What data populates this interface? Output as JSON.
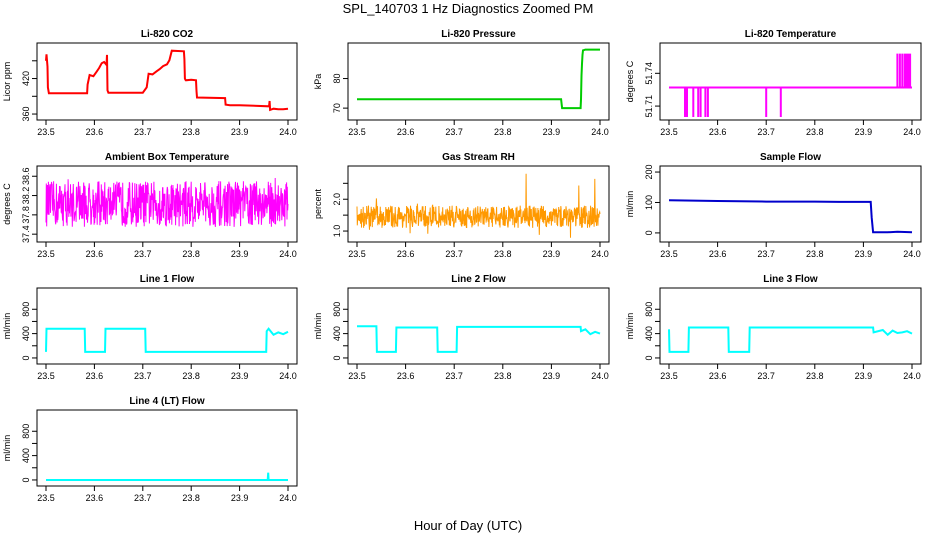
{
  "figure": {
    "title": "SPL_140703  1 Hz Diagnostics Zoomed PM",
    "x_caption": "Hour of Day (UTC)"
  },
  "chart_data": [
    {
      "id": "co2",
      "type": "line",
      "title": "Li-820 CO2",
      "ylabel": "Licor ppm",
      "color": "#ff0000",
      "xlim": [
        23.5,
        24.0
      ],
      "ylim": [
        355,
        475
      ],
      "xticks": [
        23.5,
        23.6,
        23.7,
        23.8,
        23.9,
        24.0
      ],
      "xtick_labels": [
        "23.5",
        "23.6",
        "23.7",
        "23.8",
        "23.9",
        "24.0"
      ],
      "yticks": [
        360,
        390,
        420,
        450
      ],
      "ytick_labels": [
        "360",
        "",
        "420",
        ""
      ],
      "series": [
        {
          "x": [
            23.5,
            23.501,
            23.503,
            23.504,
            23.506,
            23.585,
            23.586,
            23.59,
            23.598,
            23.605,
            23.61,
            23.615,
            23.62,
            23.625,
            23.626,
            23.627,
            23.628,
            23.629,
            23.7,
            23.708,
            23.712,
            23.72,
            23.728,
            23.735,
            23.742,
            23.75,
            23.755,
            23.76,
            23.785,
            23.786,
            23.787,
            23.788,
            23.789,
            23.8,
            23.81,
            23.811,
            23.812,
            23.87,
            23.871,
            23.88,
            23.9,
            23.96,
            23.961,
            23.962,
            23.963,
            23.97,
            23.98,
            23.99,
            24.0
          ],
          "y": [
            450,
            461,
            440,
            405,
            395,
            395,
            410,
            426,
            424,
            432,
            438,
            446,
            448,
            443,
            460,
            400,
            398,
            396,
            396,
            405,
            428,
            427,
            432,
            436,
            441,
            444,
            451,
            467,
            466,
            453,
            420,
            418,
            417,
            418,
            417,
            399,
            388,
            387,
            376,
            375,
            375,
            373,
            374,
            382,
            367,
            369,
            368,
            368,
            369
          ]
        }
      ]
    },
    {
      "id": "pressure",
      "type": "line",
      "title": "Li-820 Pressure",
      "ylabel": "kPa",
      "color": "#00cc00",
      "xlim": [
        23.5,
        24.0
      ],
      "ylim": [
        67,
        91
      ],
      "xticks": [
        23.5,
        23.6,
        23.7,
        23.8,
        23.9,
        24.0
      ],
      "xtick_labels": [
        "23.5",
        "23.6",
        "23.7",
        "23.8",
        "23.9",
        "24.0"
      ],
      "yticks": [
        70,
        80
      ],
      "ytick_labels": [
        "70",
        "80"
      ],
      "series": [
        {
          "x": [
            23.5,
            23.92,
            23.921,
            23.922,
            23.96,
            23.961,
            23.962,
            23.963,
            23.964,
            23.965,
            23.97,
            24.0
          ],
          "y": [
            73,
            73,
            71.5,
            70,
            70,
            73,
            81,
            85,
            88,
            89.5,
            89.8,
            89.8
          ]
        }
      ]
    },
    {
      "id": "licor-temp",
      "type": "line",
      "title": "Li-820 Temperature",
      "ylabel": "degrees C",
      "color": "#ff00ff",
      "xlim": [
        23.5,
        24.0
      ],
      "ylim": [
        51.7,
        51.765
      ],
      "xticks": [
        23.5,
        23.6,
        23.7,
        23.8,
        23.9,
        24.0
      ],
      "xtick_labels": [
        "23.5",
        "23.6",
        "23.7",
        "23.8",
        "23.9",
        "24.0"
      ],
      "yticks": [
        51.71,
        51.74
      ],
      "ytick_labels": [
        "51.71",
        "51.74"
      ],
      "series": [
        {
          "x": [
            23.5,
            23.533,
            23.533,
            23.533,
            23.535,
            23.535,
            23.535,
            23.537,
            23.537,
            23.537,
            23.55,
            23.55,
            23.55,
            23.56,
            23.56,
            23.56,
            23.565,
            23.565,
            23.565,
            23.575,
            23.575,
            23.575,
            23.58,
            23.58,
            23.58,
            23.7,
            23.7,
            23.7,
            23.73,
            23.73,
            23.73,
            23.97,
            23.97,
            23.97,
            23.975,
            23.975,
            23.975,
            23.98,
            23.98,
            23.98,
            23.985,
            23.985,
            23.985,
            23.988,
            23.988,
            23.988,
            23.992,
            23.992,
            23.992,
            23.996,
            23.996,
            23.996,
            24.0
          ],
          "y": [
            51.727,
            51.727,
            51.7,
            51.727,
            51.727,
            51.7,
            51.727,
            51.727,
            51.7,
            51.727,
            51.727,
            51.7,
            51.727,
            51.727,
            51.7,
            51.727,
            51.727,
            51.7,
            51.727,
            51.727,
            51.7,
            51.727,
            51.727,
            51.7,
            51.727,
            51.727,
            51.7,
            51.727,
            51.727,
            51.7,
            51.727,
            51.727,
            51.758,
            51.727,
            51.727,
            51.758,
            51.727,
            51.727,
            51.758,
            51.727,
            51.727,
            51.758,
            51.727,
            51.727,
            51.758,
            51.727,
            51.727,
            51.758,
            51.727,
            51.727,
            51.758,
            51.727,
            51.727
          ]
        }
      ]
    },
    {
      "id": "box-temp",
      "type": "line",
      "title": "Ambient Box Temperature",
      "ylabel": "degrees C",
      "color": "#ff00ff",
      "xlim": [
        23.5,
        24.0
      ],
      "ylim": [
        37.3,
        38.75
      ],
      "xticks": [
        23.5,
        23.6,
        23.7,
        23.8,
        23.9,
        24.0
      ],
      "xtick_labels": [
        "23.5",
        "23.6",
        "23.7",
        "23.8",
        "23.9",
        "24.0"
      ],
      "yticks": [
        37.4,
        37.8,
        38.2,
        38.6
      ],
      "ytick_labels": [
        "37.4",
        "37.8",
        "38.2",
        "38.6"
      ],
      "noise": {
        "x_start": 23.5,
        "x_end": 24.0,
        "low": 37.55,
        "high": 38.5,
        "n": 700
      }
    },
    {
      "id": "gas-rh",
      "type": "line",
      "title": "Gas Stream RH",
      "ylabel": "percent",
      "color": "#ff9900",
      "xlim": [
        23.5,
        24.0
      ],
      "ylim": [
        0.75,
        2.95
      ],
      "xticks": [
        23.5,
        23.6,
        23.7,
        23.8,
        23.9,
        24.0
      ],
      "xtick_labels": [
        "23.5",
        "23.6",
        "23.7",
        "23.8",
        "23.9",
        "24.0"
      ],
      "yticks": [
        1.0,
        1.5,
        2.0,
        2.5
      ],
      "ytick_labels": [
        "1.0",
        "",
        "2.0",
        ""
      ],
      "noise": {
        "x_start": 23.5,
        "x_end": 24.0,
        "low": 1.1,
        "high": 1.8,
        "n": 700
      }
    },
    {
      "id": "sample-flow",
      "type": "line",
      "title": "Sample Flow",
      "ylabel": "ml/min",
      "color": "#0000cc",
      "xlim": [
        23.5,
        24.0
      ],
      "ylim": [
        -20,
        210
      ],
      "xticks": [
        23.5,
        23.6,
        23.7,
        23.8,
        23.9,
        24.0
      ],
      "xtick_labels": [
        "23.5",
        "23.6",
        "23.7",
        "23.8",
        "23.9",
        "24.0"
      ],
      "yticks": [
        0,
        100,
        200
      ],
      "ytick_labels": [
        "0",
        "100",
        "200"
      ],
      "series": [
        {
          "x": [
            23.5,
            23.6,
            23.7,
            23.8,
            23.85,
            23.9,
            23.915,
            23.917,
            23.92,
            23.95,
            23.97,
            24.0
          ],
          "y": [
            107,
            105,
            103,
            103,
            102,
            102,
            102,
            50,
            2,
            2,
            4,
            2
          ]
        }
      ]
    },
    {
      "id": "line1",
      "type": "line",
      "title": "Line 1 Flow",
      "ylabel": "ml/min",
      "color": "#00ffff",
      "xlim": [
        23.5,
        24.0
      ],
      "ylim": [
        -50,
        1100
      ],
      "xticks": [
        23.5,
        23.6,
        23.7,
        23.8,
        23.9,
        24.0
      ],
      "xtick_labels": [
        "23.5",
        "23.6",
        "23.7",
        "23.8",
        "23.9",
        "24.0"
      ],
      "yticks": [
        0,
        200,
        400,
        600,
        800
      ],
      "ytick_labels": [
        "0",
        "",
        "400",
        "",
        "800"
      ],
      "series": [
        {
          "x": [
            23.5,
            23.501,
            23.58,
            23.581,
            23.622,
            23.623,
            23.705,
            23.706,
            23.955,
            23.956,
            23.96,
            23.97,
            23.98,
            23.99,
            24.0
          ],
          "y": [
            100,
            480,
            480,
            100,
            100,
            480,
            480,
            100,
            100,
            440,
            480,
            380,
            420,
            390,
            430
          ]
        }
      ]
    },
    {
      "id": "line2",
      "type": "line",
      "title": "Line 2 Flow",
      "ylabel": "ml/min",
      "color": "#00ffff",
      "xlim": [
        23.5,
        24.0
      ],
      "ylim": [
        -50,
        1100
      ],
      "xticks": [
        23.5,
        23.6,
        23.7,
        23.8,
        23.9,
        24.0
      ],
      "xtick_labels": [
        "23.5",
        "23.6",
        "23.7",
        "23.8",
        "23.9",
        "24.0"
      ],
      "yticks": [
        0,
        200,
        400,
        600,
        800
      ],
      "ytick_labels": [
        "0",
        "",
        "400",
        "",
        "800"
      ],
      "series": [
        {
          "x": [
            23.5,
            23.54,
            23.541,
            23.58,
            23.581,
            23.665,
            23.666,
            23.705,
            23.706,
            23.96,
            23.961,
            23.97,
            23.98,
            23.99,
            24.0
          ],
          "y": [
            520,
            520,
            100,
            100,
            500,
            500,
            100,
            100,
            510,
            510,
            440,
            470,
            390,
            430,
            400
          ]
        }
      ]
    },
    {
      "id": "line3",
      "type": "line",
      "title": "Line 3 Flow",
      "ylabel": "ml/min",
      "color": "#00ffff",
      "xlim": [
        23.5,
        24.0
      ],
      "ylim": [
        -50,
        1100
      ],
      "xticks": [
        23.5,
        23.6,
        23.7,
        23.8,
        23.9,
        24.0
      ],
      "xtick_labels": [
        "23.5",
        "23.6",
        "23.7",
        "23.8",
        "23.9",
        "24.0"
      ],
      "yticks": [
        0,
        200,
        400,
        600,
        800
      ],
      "ytick_labels": [
        "0",
        "",
        "400",
        "",
        "800"
      ],
      "series": [
        {
          "x": [
            23.5,
            23.501,
            23.54,
            23.541,
            23.622,
            23.623,
            23.665,
            23.666,
            23.92,
            23.921,
            23.94,
            23.95,
            23.96,
            23.97,
            23.98,
            23.99,
            24.0
          ],
          "y": [
            470,
            100,
            100,
            500,
            500,
            100,
            100,
            500,
            500,
            420,
            460,
            380,
            450,
            410,
            420,
            440,
            400
          ]
        }
      ]
    },
    {
      "id": "line4",
      "type": "line",
      "title": "Line 4 (LT) Flow",
      "ylabel": "ml/min",
      "color": "#00ffff",
      "xlim": [
        23.5,
        24.0
      ],
      "ylim": [
        -50,
        1100
      ],
      "xticks": [
        23.5,
        23.6,
        23.7,
        23.8,
        23.9,
        24.0
      ],
      "xtick_labels": [
        "23.5",
        "23.6",
        "23.7",
        "23.8",
        "23.9",
        "24.0"
      ],
      "yticks": [
        0,
        200,
        400,
        600,
        800
      ],
      "ytick_labels": [
        "0",
        "",
        "400",
        "",
        "800"
      ],
      "series": [
        {
          "x": [
            23.5,
            23.958,
            23.959,
            23.96,
            23.961,
            24.0
          ],
          "y": [
            0,
            0,
            120,
            0,
            0,
            0
          ]
        }
      ]
    }
  ]
}
